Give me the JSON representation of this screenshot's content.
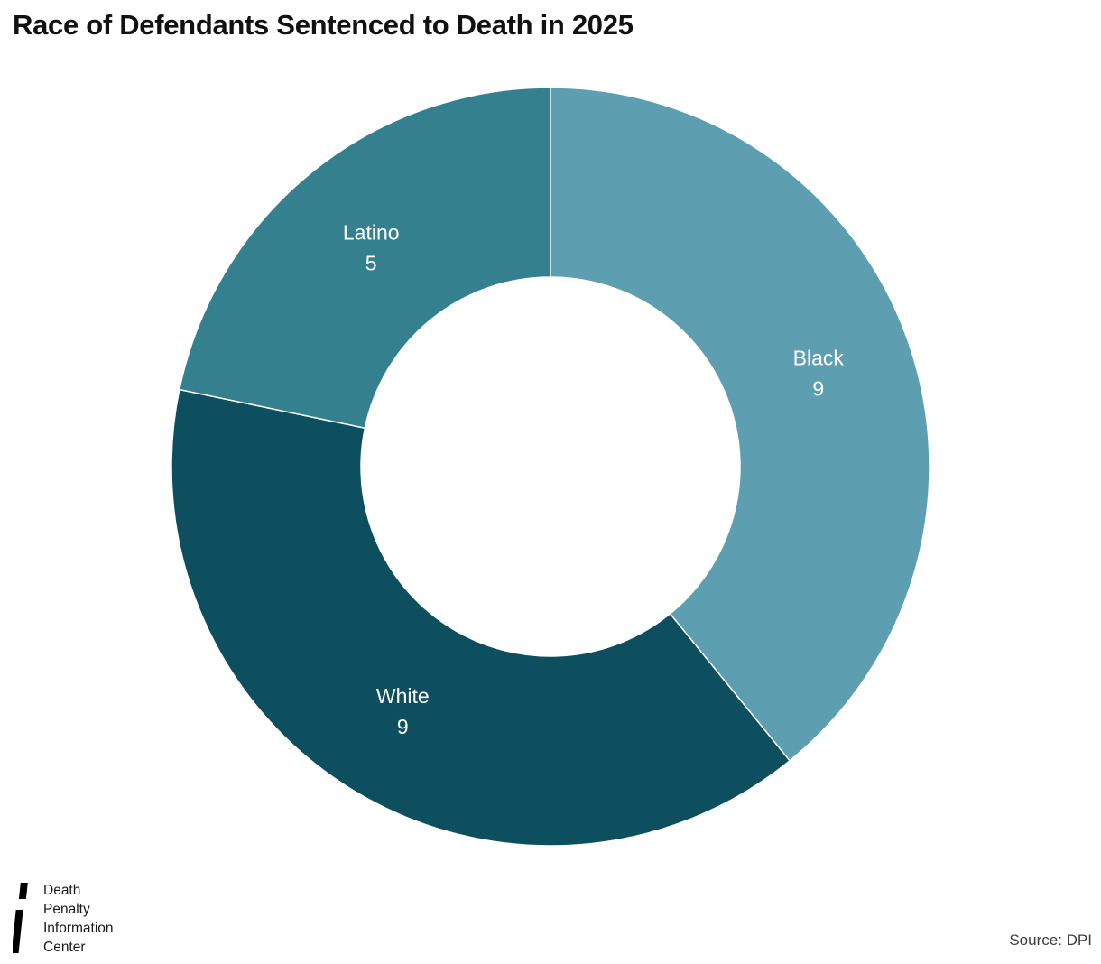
{
  "title": "Race of Defendants Sentenced to Death in 2025",
  "chart_data": {
    "type": "pie",
    "subtype": "donut",
    "title": "Race of Defendants Sentenced to Death in 2025",
    "start_angle_deg": 0,
    "direction": "clockwise",
    "labels_inside": true,
    "label_color": "#ffffff",
    "legend_position": "none",
    "total": 23,
    "slices": [
      {
        "label": "Black",
        "value": 9,
        "color": "#5d9fb0"
      },
      {
        "label": "White",
        "value": 9,
        "color": "#0d4f5e"
      },
      {
        "label": "Latino",
        "value": 5,
        "color": "#35808f"
      }
    ]
  },
  "footer": {
    "logo_icon": "dpic-logo-icon",
    "logo_lines": [
      "Death",
      "Penalty",
      "Information",
      "Center"
    ],
    "source": "Source: DPI"
  }
}
